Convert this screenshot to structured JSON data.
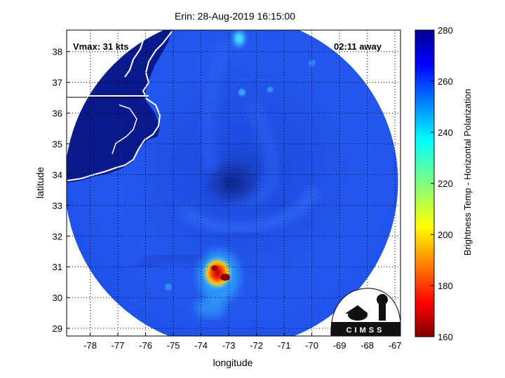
{
  "title": "Erin: 28-Aug-2019 16:15:00",
  "vmax_label": "Vmax: 31 kts",
  "time_away": "02:11 away",
  "xlabel": "longitude",
  "ylabel": "latitude",
  "colorbar": {
    "label": "Brightness Temp - Horizontal Polarization",
    "ticks": [
      "280",
      "260",
      "240",
      "220",
      "200",
      "180",
      "160"
    ],
    "range": [
      160,
      280
    ],
    "colormap": "jet"
  },
  "x_ticks": [
    "-78",
    "-77",
    "-76",
    "-75",
    "-74",
    "-73",
    "-72",
    "-71",
    "-70",
    "-69",
    "-68",
    "-67"
  ],
  "y_ticks": [
    "38",
    "37",
    "36",
    "35",
    "34",
    "33",
    "32",
    "31",
    "30",
    "29"
  ],
  "logo_text": "CIMSS",
  "colors": {
    "background_land": "#0a1a8c",
    "ocean": "#1e4fe6",
    "swath_edge": "#ffffff",
    "grid": "#000000"
  }
}
